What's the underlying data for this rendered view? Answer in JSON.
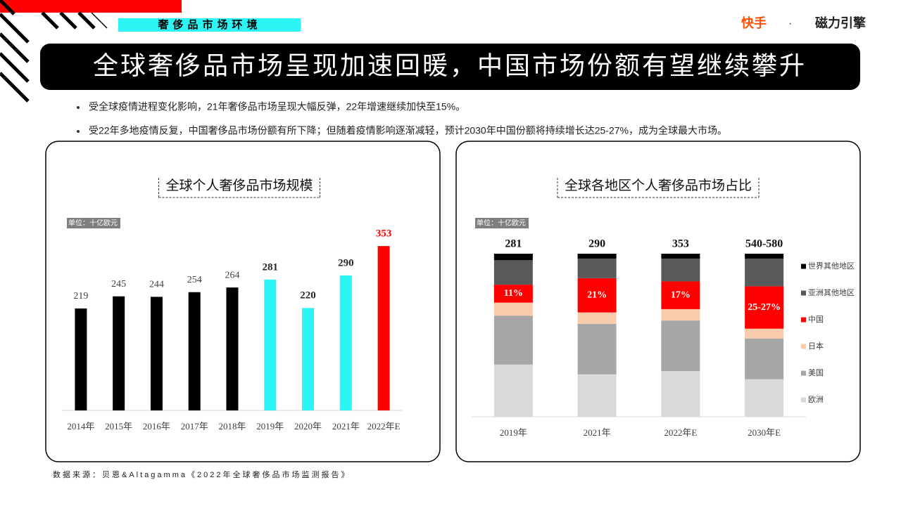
{
  "header": {
    "section": "奢侈品市场环境",
    "logo_a": "快手",
    "logo_dot": "·",
    "logo_b": "磁力引擎",
    "title": "全球奢侈品市场呈现加速回暖，中国市场份额有望继续攀升"
  },
  "bullets": [
    "受全球疫情进程变化影响，21年奢侈品市场呈现大幅反弹，22年增速继续加快至15%。",
    "受22年多地疫情反复，中国奢侈品市场份额有所下降；但随着疫情影响逐渐减轻，预计2030年中国份额将持续增长达25-27%，成为全球最大市场。"
  ],
  "source": "数据来源：贝恩&Altagamma《2022年全球奢侈品市场监测报告》",
  "chart_data": [
    {
      "type": "bar",
      "title": "全球个人奢侈品市场规模",
      "unit": "单位：十亿欧元",
      "categories": [
        "2014年",
        "2015年",
        "2016年",
        "2017年",
        "2018年",
        "2019年",
        "2020年",
        "2021年",
        "2022年E"
      ],
      "values": [
        219,
        245,
        244,
        254,
        264,
        281,
        220,
        290,
        353
      ],
      "colors": [
        "#000000",
        "#000000",
        "#000000",
        "#000000",
        "#000000",
        "#2ef5f5",
        "#2ef5f5",
        "#2ef5f5",
        "#ff0000"
      ],
      "value_label_colors": [
        "#404040",
        "#404040",
        "#404040",
        "#404040",
        "#404040",
        "#262626",
        "#262626",
        "#262626",
        "#ff0000"
      ],
      "ylim": [
        0,
        400
      ]
    },
    {
      "type": "stacked_bar",
      "title": "全球各地区个人奢侈品市场占比",
      "unit": "单位：十亿欧元",
      "categories": [
        "2019年",
        "2021年",
        "2022年E",
        "2030年E"
      ],
      "totals": {
        "values": [
          281,
          290,
          353,
          560
        ],
        "value_labels": [
          "281",
          "290",
          "353",
          "540-580"
        ]
      },
      "ylim": [
        0,
        100
      ],
      "legend": "right",
      "series": [
        {
          "name": "欧洲",
          "color": "#d9d9d9",
          "values": [
            32,
            26,
            28,
            23
          ]
        },
        {
          "name": "美国",
          "color": "#a6a6a6",
          "values": [
            30,
            31,
            31,
            25
          ]
        },
        {
          "name": "日本",
          "color": "#f8cbad",
          "values": [
            8,
            7,
            7,
            6
          ]
        },
        {
          "name": "中国",
          "color": "#ff0000",
          "values": [
            11,
            21,
            17,
            26
          ],
          "value_labels": [
            "11%",
            "21%",
            "17%",
            "25-27%"
          ]
        },
        {
          "name": "亚洲其他地区",
          "color": "#595959",
          "values": [
            15,
            12,
            14,
            17
          ]
        },
        {
          "name": "世界其他地区",
          "color": "#000000",
          "values": [
            4,
            3,
            3,
            3
          ]
        }
      ]
    }
  ]
}
